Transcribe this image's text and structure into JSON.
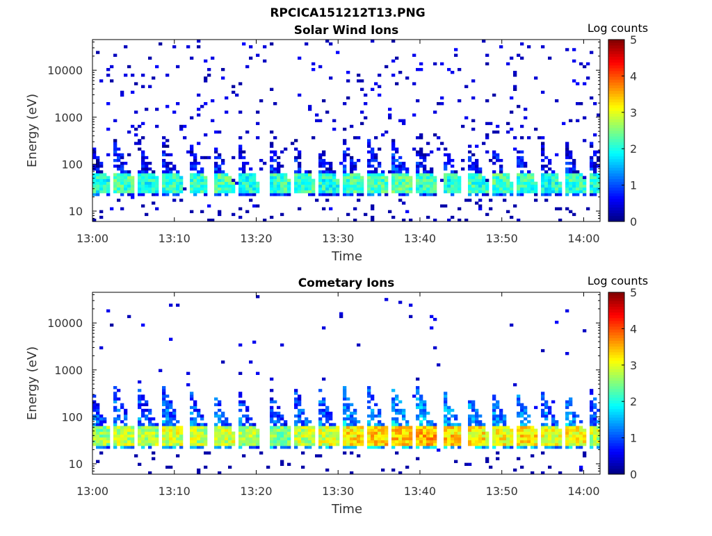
{
  "figure_title": "RPCICA151212T13.PNG",
  "chart_data": [
    {
      "type": "heatmap",
      "title": "Solar Wind Ions",
      "xlabel": "Time",
      "ylabel": "Energy (eV)",
      "x_ticks": [
        "13:00",
        "13:10",
        "13:20",
        "13:30",
        "13:40",
        "13:50",
        "14:00"
      ],
      "x_range": [
        "13:00",
        "14:02"
      ],
      "y_scale": "log",
      "y_ticks": [
        10,
        100,
        1000,
        10000
      ],
      "y_tick_labels": [
        "10",
        "100",
        "1000",
        "10000"
      ],
      "y_range": [
        6,
        45000
      ],
      "colorbar": {
        "label": "Log counts",
        "range": [
          0,
          5
        ],
        "ticks": [
          "0",
          "1",
          "2",
          "3",
          "4",
          "5"
        ],
        "colormap": "jet"
      },
      "bursts": [
        {
          "t": "13:00",
          "log_counts": 2.0
        },
        {
          "t": "13:03",
          "log_counts": 2.2
        },
        {
          "t": "13:06",
          "log_counts": 2.0
        },
        {
          "t": "13:09",
          "log_counts": 2.1
        },
        {
          "t": "13:12",
          "log_counts": 2.1
        },
        {
          "t": "13:15",
          "log_counts": 2.2
        },
        {
          "t": "13:18",
          "log_counts": 2.0
        },
        {
          "t": "13:22",
          "log_counts": 2.1
        },
        {
          "t": "13:25",
          "log_counts": 2.2
        },
        {
          "t": "13:28",
          "log_counts": 2.0
        },
        {
          "t": "13:31",
          "log_counts": 2.2
        },
        {
          "t": "13:34",
          "log_counts": 2.2
        },
        {
          "t": "13:37",
          "log_counts": 2.3
        },
        {
          "t": "13:40",
          "log_counts": 2.1
        },
        {
          "t": "13:43",
          "log_counts": 2.0
        },
        {
          "t": "13:46",
          "log_counts": 2.1
        },
        {
          "t": "13:49",
          "log_counts": 2.2
        },
        {
          "t": "13:52",
          "log_counts": 2.1
        },
        {
          "t": "13:55",
          "log_counts": 2.0
        },
        {
          "t": "13:58",
          "log_counts": 2.1
        },
        {
          "t": "14:01",
          "log_counts": 2.0
        }
      ],
      "band_energy_eV": [
        25,
        60
      ],
      "background_level": 0.3
    },
    {
      "type": "heatmap",
      "title": "Cometary Ions",
      "xlabel": "Time",
      "ylabel": "Energy (eV)",
      "x_ticks": [
        "13:00",
        "13:10",
        "13:20",
        "13:30",
        "13:40",
        "13:50",
        "14:00"
      ],
      "x_range": [
        "13:00",
        "14:02"
      ],
      "y_scale": "log",
      "y_ticks": [
        10,
        100,
        1000,
        10000
      ],
      "y_tick_labels": [
        "10",
        "100",
        "1000",
        "10000"
      ],
      "y_range": [
        6,
        45000
      ],
      "colorbar": {
        "label": "Log counts",
        "range": [
          0,
          5
        ],
        "ticks": [
          "0",
          "1",
          "2",
          "3",
          "4",
          "5"
        ],
        "colormap": "jet"
      },
      "bursts": [
        {
          "t": "13:00",
          "log_counts": 2.6
        },
        {
          "t": "13:03",
          "log_counts": 2.8
        },
        {
          "t": "13:06",
          "log_counts": 2.7
        },
        {
          "t": "13:09",
          "log_counts": 2.9
        },
        {
          "t": "13:12",
          "log_counts": 2.8
        },
        {
          "t": "13:15",
          "log_counts": 2.9
        },
        {
          "t": "13:18",
          "log_counts": 2.7
        },
        {
          "t": "13:22",
          "log_counts": 2.5
        },
        {
          "t": "13:25",
          "log_counts": 2.8
        },
        {
          "t": "13:28",
          "log_counts": 2.9
        },
        {
          "t": "13:31",
          "log_counts": 3.2
        },
        {
          "t": "13:34",
          "log_counts": 3.3
        },
        {
          "t": "13:37",
          "log_counts": 3.4
        },
        {
          "t": "13:40",
          "log_counts": 3.5
        },
        {
          "t": "13:43",
          "log_counts": 3.3
        },
        {
          "t": "13:46",
          "log_counts": 3.2
        },
        {
          "t": "13:49",
          "log_counts": 3.1
        },
        {
          "t": "13:52",
          "log_counts": 3.2
        },
        {
          "t": "13:55",
          "log_counts": 3.0
        },
        {
          "t": "13:58",
          "log_counts": 3.1
        },
        {
          "t": "14:01",
          "log_counts": 2.8
        }
      ],
      "band_energy_eV": [
        25,
        60
      ],
      "background_level": 0.1
    }
  ]
}
